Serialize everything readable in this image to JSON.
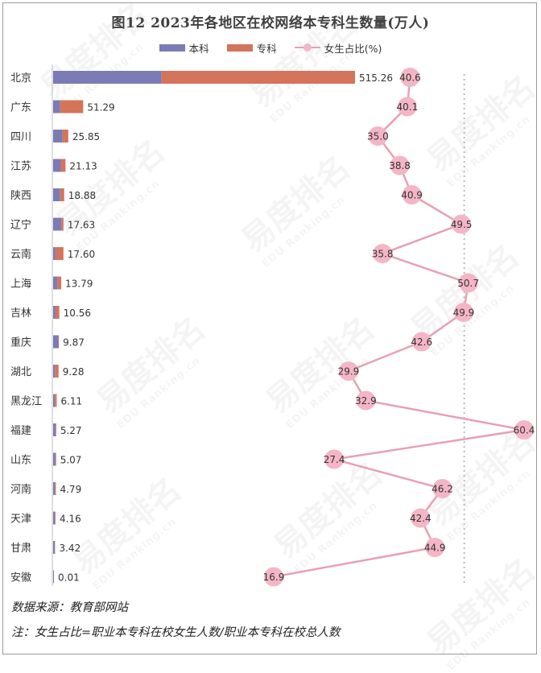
{
  "title": "图12  2023年各地区在校网络本专科生数量(万人)",
  "legend": {
    "benke": "本科",
    "zhuanke": "专科",
    "ratio": "女生占比(%)"
  },
  "colors": {
    "benke": "#7b7bb5",
    "zhuanke": "#d4745a",
    "ratio_line": "#e8a0b4",
    "ratio_dot": "#f4b6c6",
    "guide": "#bbbbbb"
  },
  "source": "数据来源：教育部网站",
  "note": "注：女生占比=职业本专科在校女生人数/职业本专科在校总人数",
  "watermark": {
    "text": "易度排名",
    "subtext": "EDU Ranking.cn"
  },
  "chart_data": {
    "type": "bar",
    "orientation": "horizontal-stacked",
    "categories": [
      "北京",
      "广东",
      "四川",
      "江苏",
      "陕西",
      "辽宁",
      "云南",
      "上海",
      "吉林",
      "重庆",
      "湖北",
      "黑龙江",
      "福建",
      "山东",
      "河南",
      "天津",
      "甘肃",
      "安徽"
    ],
    "totals": [
      515.26,
      51.29,
      25.85,
      21.13,
      18.88,
      17.63,
      17.6,
      13.79,
      10.56,
      9.87,
      9.28,
      6.11,
      5.27,
      5.07,
      4.79,
      4.16,
      3.42,
      0.01
    ],
    "series": [
      {
        "name": "本科",
        "values": [
          185.0,
          12.0,
          16.0,
          13.0,
          12.0,
          14.0,
          4.0,
          7.0,
          4.0,
          9.0,
          3.0,
          3.0,
          4.0,
          4.0,
          3.0,
          3.0,
          3.0,
          0.01
        ]
      },
      {
        "name": "专科",
        "values": [
          330.26,
          39.29,
          9.85,
          8.13,
          6.88,
          3.63,
          13.6,
          6.79,
          6.56,
          0.87,
          6.28,
          3.11,
          1.27,
          1.07,
          1.79,
          1.16,
          0.42,
          0.0
        ]
      },
      {
        "name": "女生占比(%)",
        "type": "line",
        "values": [
          40.6,
          40.1,
          35.0,
          38.8,
          40.9,
          49.5,
          35.8,
          50.7,
          49.9,
          42.6,
          29.9,
          32.9,
          60.4,
          27.4,
          46.2,
          42.4,
          44.9,
          16.9
        ]
      }
    ],
    "guide_line": 50,
    "xlim_bar": [
      0,
      600
    ],
    "xlim_ratio": [
      0,
      65
    ]
  }
}
